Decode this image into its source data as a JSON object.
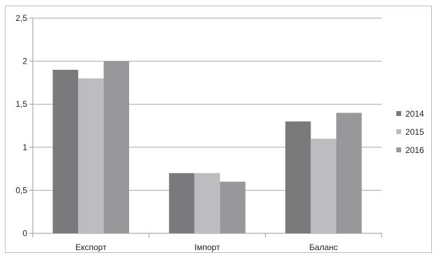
{
  "chart_data": {
    "type": "bar",
    "categories": [
      "Експорт",
      "Імпорт",
      "Баланс"
    ],
    "series": [
      {
        "name": "2014",
        "values": [
          1.9,
          0.7,
          1.3
        ],
        "color": "#7a7a7c"
      },
      {
        "name": "2015",
        "values": [
          1.8,
          0.7,
          1.1
        ],
        "color": "#bdbdbf"
      },
      {
        "name": "2016",
        "values": [
          2.0,
          0.6,
          1.4
        ],
        "color": "#98989a"
      }
    ],
    "y_ticks": [
      "0",
      "0,5",
      "1",
      "1,5",
      "2",
      "2,5"
    ],
    "ylim": [
      0,
      2.5
    ],
    "grid": true,
    "legend_position": "right",
    "title": "",
    "xlabel": "",
    "ylabel": ""
  }
}
